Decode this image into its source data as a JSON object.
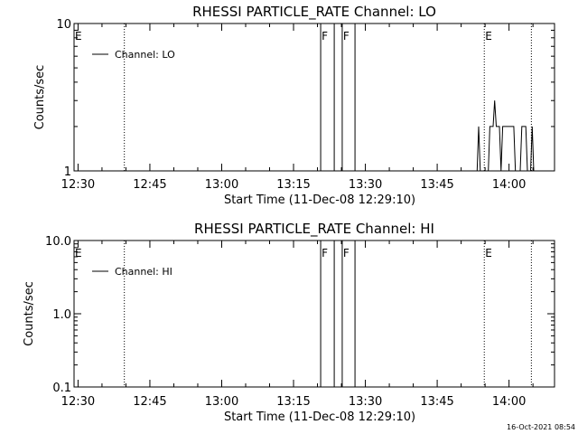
{
  "footer_timestamp": "16-Oct-2021 08:54",
  "chart_data": [
    {
      "type": "line",
      "scale": "log",
      "title": "RHESSI PARTICLE_RATE Channel: LO",
      "xlabel": "Start Time (11-Dec-08 12:29:10)",
      "ylabel": "Counts/sec",
      "xlim": [
        "12:29:10",
        "14:09:30"
      ],
      "ylim": [
        1,
        10
      ],
      "x_ticks": [
        "12:30",
        "12:45",
        "13:00",
        "13:15",
        "13:30",
        "13:45",
        "14:00"
      ],
      "y_ticks": [
        "1",
        "10"
      ],
      "legend": "Channel: LO",
      "legend_position": "top-left",
      "event_markers": [
        {
          "label": "E",
          "time": "12:29:10",
          "style": "dotted"
        },
        {
          "label": "",
          "time": "12:39:40",
          "style": "dotted"
        },
        {
          "label": "F",
          "time": "13:20:40",
          "style": "solid"
        },
        {
          "label": "",
          "time": "13:23:30",
          "style": "solid"
        },
        {
          "label": "F",
          "time": "13:25:10",
          "style": "solid"
        },
        {
          "label": "",
          "time": "13:27:50",
          "style": "solid"
        },
        {
          "label": "E",
          "time": "13:54:50",
          "style": "dotted"
        },
        {
          "label": "",
          "time": "14:04:40",
          "style": "dotted"
        }
      ],
      "series": [
        {
          "name": "Channel: LO",
          "points": [
            [
              "13:53:20",
              1
            ],
            [
              "13:53:40",
              2
            ],
            [
              "13:54:00",
              1
            ],
            [
              "13:55:40",
              1
            ],
            [
              "13:56:00",
              2
            ],
            [
              "13:56:40",
              2
            ],
            [
              "13:57:00",
              3
            ],
            [
              "13:57:20",
              2
            ],
            [
              "13:58:00",
              2
            ],
            [
              "13:58:20",
              1
            ],
            [
              "13:58:40",
              2
            ],
            [
              "14:01:00",
              2
            ],
            [
              "14:01:20",
              1
            ],
            [
              "14:02:20",
              1
            ],
            [
              "14:02:40",
              2
            ],
            [
              "14:03:30",
              2
            ],
            [
              "14:03:50",
              1
            ],
            [
              "14:04:30",
              1
            ],
            [
              "14:04:50",
              2
            ],
            [
              "14:05:10",
              1
            ]
          ]
        }
      ]
    },
    {
      "type": "line",
      "scale": "log",
      "title": "RHESSI PARTICLE_RATE Channel: HI",
      "xlabel": "Start Time (11-Dec-08 12:29:10)",
      "ylabel": "Counts/sec",
      "xlim": [
        "12:29:10",
        "14:09:30"
      ],
      "ylim": [
        0.1,
        10
      ],
      "x_ticks": [
        "12:30",
        "12:45",
        "13:00",
        "13:15",
        "13:30",
        "13:45",
        "14:00"
      ],
      "y_ticks": [
        "0.1",
        "1.0",
        "10.0"
      ],
      "legend": "Channel: HI",
      "legend_position": "top-left",
      "event_markers": [
        {
          "label": "E",
          "time": "12:29:10",
          "style": "dotted"
        },
        {
          "label": "",
          "time": "12:39:40",
          "style": "dotted"
        },
        {
          "label": "F",
          "time": "13:20:40",
          "style": "solid"
        },
        {
          "label": "",
          "time": "13:23:30",
          "style": "solid"
        },
        {
          "label": "F",
          "time": "13:25:10",
          "style": "solid"
        },
        {
          "label": "",
          "time": "13:27:50",
          "style": "solid"
        },
        {
          "label": "E",
          "time": "13:54:50",
          "style": "dotted"
        },
        {
          "label": "",
          "time": "14:04:40",
          "style": "dotted"
        }
      ],
      "series": [
        {
          "name": "Channel: HI",
          "points": []
        }
      ]
    }
  ]
}
